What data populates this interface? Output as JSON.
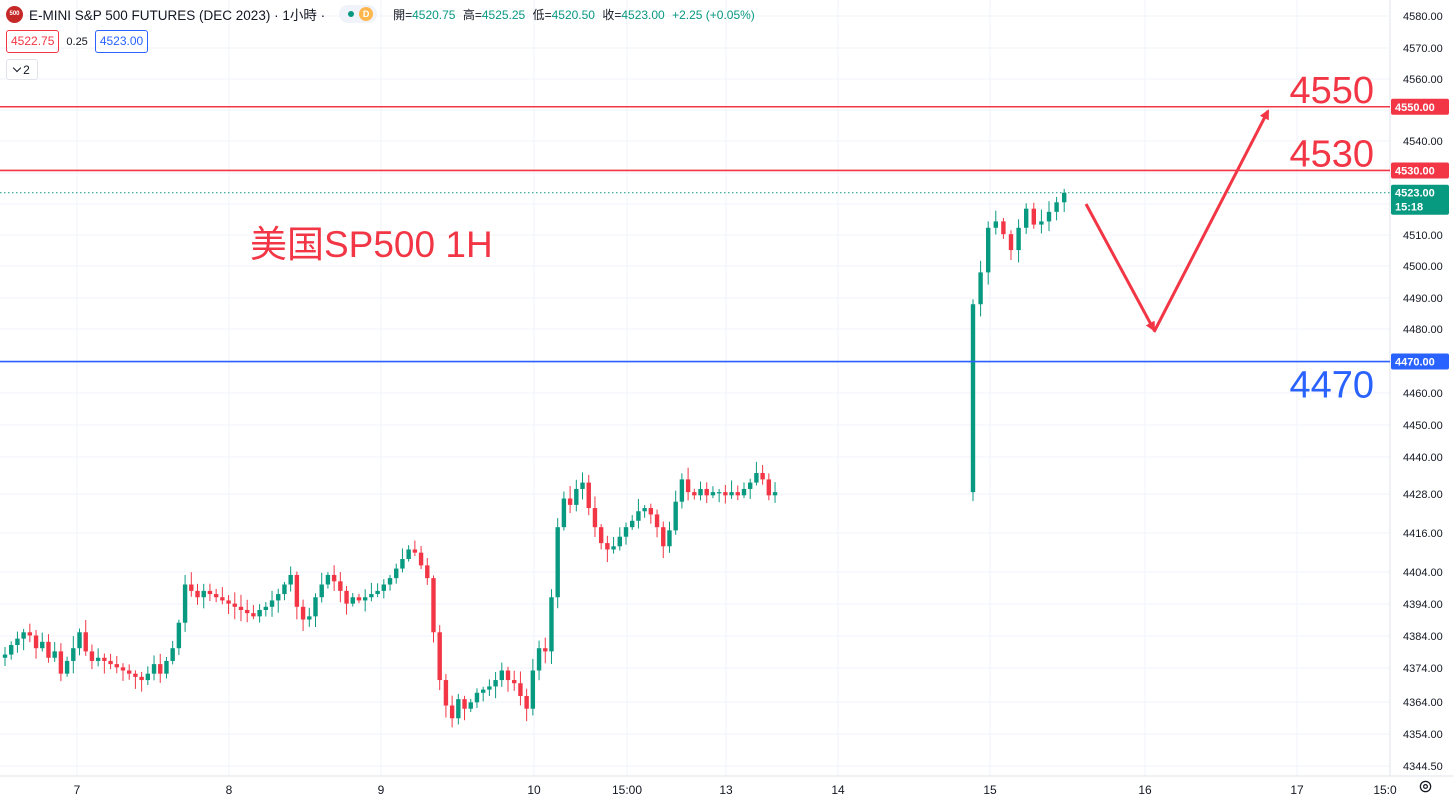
{
  "header": {
    "logo_text": "500",
    "title": "E-MINI S&P 500 FUTURES (DEC 2023) · 1小時 ·",
    "status_badge": "D",
    "ohlc": {
      "open_label": "開=",
      "open": "4520.75",
      "high_label": "高=",
      "high": "4525.25",
      "low_label": "低=",
      "low": "4520.50",
      "close_label": "收=",
      "close": "4523.00",
      "change": "+2.25 (+0.05%)"
    }
  },
  "trade": {
    "sell_price": "4522.75",
    "spread": "0.25",
    "buy_price": "4523.00"
  },
  "indicators_toggle": {
    "count": "2"
  },
  "annotation_text": "美国SP500 1H",
  "levels": [
    {
      "label": "4550",
      "axis_label": "4550.00",
      "value": 4550,
      "color": "#f23645"
    },
    {
      "label": "4530",
      "axis_label": "4530.00",
      "value": 4530,
      "color": "#f23645"
    },
    {
      "label": "4470",
      "axis_label": "4470.00",
      "value": 4470,
      "color": "#2962ff"
    }
  ],
  "last_price": {
    "value": "4523.00",
    "countdown": "15:18"
  },
  "colors": {
    "up": "#089981",
    "down": "#f23645",
    "support": "#2962ff",
    "resistance": "#f23645"
  },
  "chart_data": {
    "type": "candlestick",
    "y_ticks": [
      "4580.00",
      "4570.00",
      "4560.00",
      "4550.00",
      "4540.00",
      "4530.00",
      "4520.00",
      "4510.00",
      "4500.00",
      "4490.00",
      "4480.00",
      "4470.00",
      "4460.00",
      "4450.00",
      "4440.00",
      "4428.00",
      "4416.00",
      "4404.00",
      "4394.00",
      "4384.00",
      "4374.00",
      "4364.00",
      "4354.00",
      "4344.50"
    ],
    "x_ticks": [
      "7",
      "8",
      "9",
      "10",
      "15:00",
      "13",
      "14",
      "15",
      "16",
      "17",
      "15:0"
    ],
    "close_path": [
      [
        4378,
        4381,
        4383,
        4385,
        4384,
        4380,
        4382,
        4377,
        4379,
        4372,
        4376,
        4380,
        4385,
        4379,
        4376,
        4377,
        4376,
        4375,
        4374,
        4373,
        4372,
        4371,
        4370,
        4372,
        4375,
        4372,
        4376,
        4380,
        4388,
        4400,
        4398,
        4396,
        4398,
        4397,
        4396,
        4395,
        4394,
        4393,
        4392,
        4391,
        4390,
        4392,
        4393,
        4395,
        4397,
        4400,
        4403,
        4393,
        4389,
        4390,
        4396,
        4400,
        4403,
        4401,
        4398,
        4394,
        4396,
        4395,
        4396,
        4397,
        4398,
        4400,
        4402,
        4405,
        4408,
        4411,
        4410,
        4406,
        4402,
        4385,
        4370,
        4362,
        4358,
        4364,
        4361,
        4363,
        4366,
        4367,
        4368,
        4370,
        4373,
        4370,
        4369,
        4365,
        4361,
        4373,
        4380,
        4379,
        4396,
        4418,
        4427,
        4425,
        4430,
        4432,
        4424,
        4418,
        4413,
        4411,
        4412,
        4415,
        4418,
        4420,
        4423,
        4424,
        4422,
        4418,
        4412,
        4417,
        4426,
        4433,
        4429,
        4428,
        4430,
        4428,
        4429,
        4429,
        4428,
        4429,
        4428,
        4430,
        4432,
        4435,
        4433,
        4428,
        4429
      ],
      [
        4488,
        4498,
        4512,
        4514,
        4510,
        4505,
        4512,
        4518,
        4513,
        4514,
        4517,
        4520,
        4523
      ]
    ]
  }
}
